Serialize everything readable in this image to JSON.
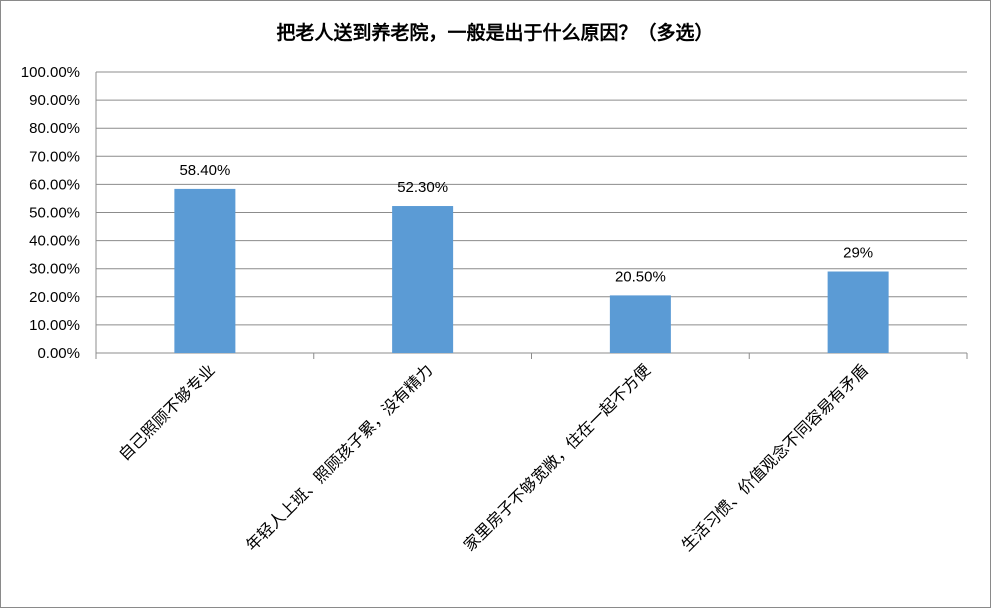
{
  "chart_data": {
    "type": "bar",
    "title": "把老人送到养老院，一般是出于什么原因？（多选）",
    "categories": [
      "自己照顾不够专业",
      "年轻人上班、照顾孩子累，没有精力",
      "家里房子不够宽敞，住在一起不方便",
      "生活习惯、价值观念不同容易有矛盾"
    ],
    "values": [
      58.4,
      52.3,
      20.5,
      29
    ],
    "data_labels": [
      "58.40%",
      "52.30%",
      "20.50%",
      "29%"
    ],
    "ylim": [
      0,
      100
    ],
    "yticks": [
      0,
      10,
      20,
      30,
      40,
      50,
      60,
      70,
      80,
      90,
      100
    ],
    "ytick_labels": [
      "0.00%",
      "10.00%",
      "20.00%",
      "30.00%",
      "40.00%",
      "50.00%",
      "60.00%",
      "70.00%",
      "80.00%",
      "90.00%",
      "100.00%"
    ],
    "grid": true,
    "legend": "none",
    "bar_color": "#5b9bd5"
  }
}
